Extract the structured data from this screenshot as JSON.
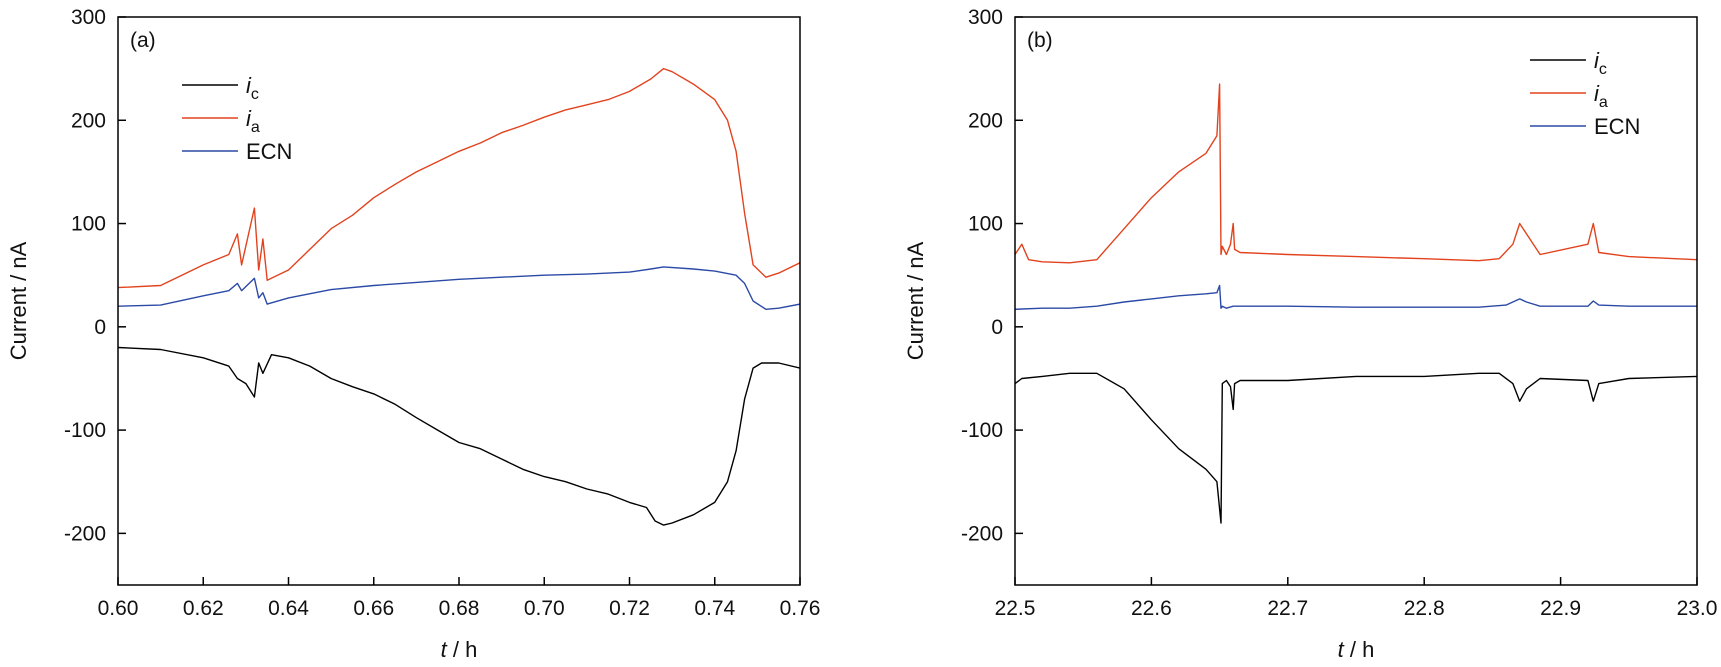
{
  "chart_data": [
    {
      "type": "line",
      "panel_label": "(a)",
      "xlabel": {
        "var": "t",
        "unit": " / h"
      },
      "ylabel": "Current / nA",
      "xlim": [
        0.6,
        0.76
      ],
      "ylim": [
        -250,
        300
      ],
      "xticks": [
        0.6,
        0.62,
        0.64,
        0.66,
        0.68,
        0.7,
        0.72,
        0.74,
        0.76
      ],
      "xtick_labels": [
        "0.60",
        "0.62",
        "0.64",
        "0.66",
        "0.68",
        "0.70",
        "0.72",
        "0.74",
        "0.76"
      ],
      "yticks": [
        -200,
        -100,
        0,
        100,
        200,
        300
      ],
      "ytick_labels": [
        "-200",
        "-100",
        "0",
        "100",
        "200",
        "300"
      ],
      "grid": false,
      "legend_position": "upper-left",
      "series": [
        {
          "name": "i",
          "subscript": "c",
          "color": "#000000",
          "x": [
            0.6,
            0.61,
            0.62,
            0.626,
            0.628,
            0.63,
            0.632,
            0.633,
            0.634,
            0.636,
            0.64,
            0.645,
            0.65,
            0.655,
            0.66,
            0.665,
            0.67,
            0.675,
            0.68,
            0.685,
            0.69,
            0.695,
            0.7,
            0.705,
            0.71,
            0.715,
            0.72,
            0.724,
            0.726,
            0.728,
            0.73,
            0.735,
            0.74,
            0.743,
            0.745,
            0.747,
            0.749,
            0.751,
            0.755,
            0.76
          ],
          "y": [
            -20,
            -22,
            -30,
            -38,
            -50,
            -55,
            -68,
            -35,
            -45,
            -27,
            -30,
            -38,
            -50,
            -58,
            -65,
            -75,
            -88,
            -100,
            -112,
            -118,
            -128,
            -138,
            -145,
            -150,
            -157,
            -162,
            -170,
            -175,
            -188,
            -192,
            -190,
            -182,
            -170,
            -150,
            -120,
            -70,
            -40,
            -35,
            -35,
            -40
          ]
        },
        {
          "name": "i",
          "subscript": "a",
          "color": "#e2431e",
          "x": [
            0.6,
            0.61,
            0.62,
            0.626,
            0.628,
            0.629,
            0.632,
            0.633,
            0.634,
            0.635,
            0.64,
            0.645,
            0.65,
            0.655,
            0.66,
            0.665,
            0.67,
            0.675,
            0.68,
            0.685,
            0.69,
            0.695,
            0.7,
            0.705,
            0.71,
            0.715,
            0.72,
            0.725,
            0.728,
            0.73,
            0.735,
            0.74,
            0.743,
            0.745,
            0.747,
            0.749,
            0.752,
            0.755,
            0.76
          ],
          "y": [
            38,
            40,
            60,
            70,
            90,
            60,
            115,
            55,
            85,
            45,
            55,
            75,
            95,
            108,
            125,
            138,
            150,
            160,
            170,
            178,
            188,
            195,
            203,
            210,
            215,
            220,
            228,
            240,
            250,
            247,
            235,
            220,
            200,
            170,
            110,
            60,
            48,
            52,
            62
          ]
        },
        {
          "name": "ECN",
          "subscript": "",
          "color": "#2b4aa6",
          "x": [
            0.6,
            0.61,
            0.62,
            0.626,
            0.628,
            0.629,
            0.632,
            0.633,
            0.634,
            0.635,
            0.64,
            0.65,
            0.66,
            0.67,
            0.68,
            0.69,
            0.7,
            0.71,
            0.72,
            0.725,
            0.728,
            0.735,
            0.74,
            0.745,
            0.747,
            0.749,
            0.752,
            0.755,
            0.76
          ],
          "y": [
            20,
            21,
            30,
            35,
            42,
            35,
            47,
            28,
            33,
            22,
            28,
            36,
            40,
            43,
            46,
            48,
            50,
            51,
            53,
            56,
            58,
            56,
            54,
            50,
            42,
            25,
            17,
            18,
            22
          ]
        }
      ]
    },
    {
      "type": "line",
      "panel_label": "(b)",
      "xlabel": {
        "var": "t",
        "unit": " / h"
      },
      "ylabel": "Current / nA",
      "xlim": [
        22.5,
        23.0
      ],
      "ylim": [
        -250,
        300
      ],
      "xticks": [
        22.5,
        22.6,
        22.7,
        22.8,
        22.9,
        23.0
      ],
      "xtick_labels": [
        "22.5",
        "22.6",
        "22.7",
        "22.8",
        "22.9",
        "23.0"
      ],
      "yticks": [
        -200,
        -100,
        0,
        100,
        200,
        300
      ],
      "ytick_labels": [
        "-200",
        "-100",
        "0",
        "100",
        "200",
        "300"
      ],
      "grid": false,
      "legend_position": "upper-right",
      "series": [
        {
          "name": "i",
          "subscript": "c",
          "color": "#000000",
          "x": [
            22.5,
            22.505,
            22.52,
            22.54,
            22.56,
            22.58,
            22.6,
            22.62,
            22.64,
            22.648,
            22.651,
            22.652,
            22.655,
            22.658,
            22.66,
            22.661,
            22.665,
            22.7,
            22.75,
            22.8,
            22.84,
            22.855,
            22.865,
            22.87,
            22.875,
            22.885,
            22.92,
            22.924,
            22.928,
            22.95,
            23.0
          ],
          "y": [
            -55,
            -50,
            -48,
            -45,
            -45,
            -60,
            -90,
            -118,
            -138,
            -150,
            -190,
            -55,
            -52,
            -58,
            -80,
            -55,
            -52,
            -52,
            -48,
            -48,
            -45,
            -45,
            -55,
            -72,
            -60,
            -50,
            -52,
            -72,
            -55,
            -50,
            -48
          ]
        },
        {
          "name": "i",
          "subscript": "a",
          "color": "#e2431e",
          "x": [
            22.5,
            22.505,
            22.51,
            22.52,
            22.54,
            22.56,
            22.58,
            22.6,
            22.62,
            22.64,
            22.648,
            22.65,
            22.651,
            22.652,
            22.655,
            22.658,
            22.66,
            22.661,
            22.665,
            22.7,
            22.75,
            22.8,
            22.84,
            22.855,
            22.865,
            22.87,
            22.875,
            22.885,
            22.92,
            22.924,
            22.928,
            22.95,
            23.0
          ],
          "y": [
            70,
            80,
            65,
            63,
            62,
            65,
            95,
            125,
            150,
            168,
            185,
            235,
            70,
            78,
            70,
            80,
            100,
            75,
            72,
            70,
            68,
            66,
            64,
            66,
            80,
            100,
            90,
            70,
            80,
            100,
            72,
            68,
            65
          ]
        },
        {
          "name": "ECN",
          "subscript": "",
          "color": "#2b4aa6",
          "x": [
            22.5,
            22.52,
            22.54,
            22.56,
            22.58,
            22.6,
            22.62,
            22.64,
            22.648,
            22.65,
            22.651,
            22.652,
            22.655,
            22.66,
            22.7,
            22.75,
            22.8,
            22.84,
            22.86,
            22.87,
            22.875,
            22.885,
            22.92,
            22.924,
            22.928,
            22.95,
            23.0
          ],
          "y": [
            17,
            18,
            18,
            20,
            24,
            27,
            30,
            32,
            33,
            40,
            18,
            20,
            18,
            20,
            20,
            19,
            19,
            19,
            21,
            27,
            24,
            20,
            20,
            25,
            21,
            20,
            20
          ]
        }
      ]
    }
  ]
}
